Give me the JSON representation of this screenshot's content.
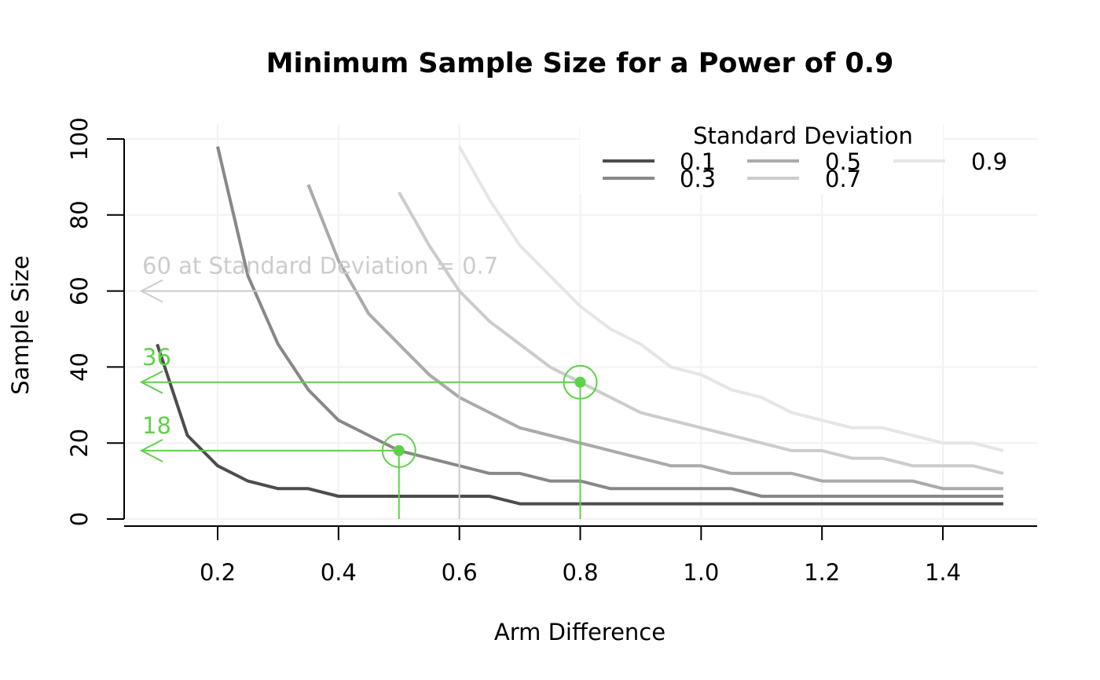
{
  "chart_data": {
    "type": "line",
    "title": "Minimum Sample Size for a Power of 0.9",
    "xlabel": "Arm Difference",
    "ylabel": "Sample Size",
    "xlim": [
      0.05,
      1.55
    ],
    "ylim": [
      0,
      100
    ],
    "xticks": [
      "0.2",
      "0.4",
      "0.6",
      "0.8",
      "1.0",
      "1.2",
      "1.4"
    ],
    "yticks": [
      "0",
      "20",
      "40",
      "60",
      "80",
      "100"
    ],
    "grid": true,
    "legend": {
      "title": "Standard Deviation",
      "placement": "top-right",
      "entries": [
        "0.1",
        "0.3",
        "0.5",
        "0.7",
        "0.9"
      ]
    },
    "series": [
      {
        "name": "0.1",
        "color": "#4d4d4d",
        "x": [
          0.1,
          0.15,
          0.2,
          0.25,
          0.3,
          0.35,
          0.4,
          0.45,
          0.5,
          0.55,
          0.6,
          0.65,
          0.7,
          0.75,
          0.8,
          0.85,
          0.9,
          0.95,
          1.0,
          1.05,
          1.1,
          1.15,
          1.2,
          1.25,
          1.3,
          1.35,
          1.4,
          1.45,
          1.5
        ],
        "y": [
          46,
          22,
          14,
          10,
          8,
          8,
          6,
          6,
          6,
          6,
          6,
          6,
          4,
          4,
          4,
          4,
          4,
          4,
          4,
          4,
          4,
          4,
          4,
          4,
          4,
          4,
          4,
          4,
          4
        ]
      },
      {
        "name": "0.3",
        "color": "#888888",
        "x": [
          0.2,
          0.25,
          0.3,
          0.35,
          0.4,
          0.45,
          0.5,
          0.55,
          0.6,
          0.65,
          0.7,
          0.75,
          0.8,
          0.85,
          0.9,
          0.95,
          1.0,
          1.05,
          1.1,
          1.15,
          1.2,
          1.25,
          1.3,
          1.35,
          1.4,
          1.45,
          1.5
        ],
        "y": [
          98,
          64,
          46,
          34,
          26,
          22,
          18,
          16,
          14,
          12,
          12,
          10,
          10,
          8,
          8,
          8,
          8,
          8,
          6,
          6,
          6,
          6,
          6,
          6,
          6,
          6,
          6
        ]
      },
      {
        "name": "0.5",
        "color": "#aaaaaa",
        "x": [
          0.35,
          0.4,
          0.45,
          0.5,
          0.55,
          0.6,
          0.65,
          0.7,
          0.75,
          0.8,
          0.85,
          0.9,
          0.95,
          1.0,
          1.05,
          1.1,
          1.15,
          1.2,
          1.25,
          1.3,
          1.35,
          1.4,
          1.45,
          1.5
        ],
        "y": [
          88,
          68,
          54,
          46,
          38,
          32,
          28,
          24,
          22,
          20,
          18,
          16,
          14,
          14,
          12,
          12,
          12,
          10,
          10,
          10,
          10,
          8,
          8,
          8
        ]
      },
      {
        "name": "0.7",
        "color": "#cccccc",
        "x": [
          0.5,
          0.55,
          0.6,
          0.65,
          0.7,
          0.75,
          0.8,
          0.85,
          0.9,
          0.95,
          1.0,
          1.05,
          1.1,
          1.15,
          1.2,
          1.25,
          1.3,
          1.35,
          1.4,
          1.45,
          1.5
        ],
        "y": [
          86,
          72,
          60,
          52,
          46,
          40,
          36,
          32,
          28,
          26,
          24,
          22,
          20,
          18,
          18,
          16,
          16,
          14,
          14,
          14,
          12
        ]
      },
      {
        "name": "0.9",
        "color": "#e6e6e6",
        "x": [
          0.6,
          0.65,
          0.7,
          0.75,
          0.8,
          0.85,
          0.9,
          0.95,
          1.0,
          1.05,
          1.1,
          1.15,
          1.2,
          1.25,
          1.3,
          1.35,
          1.4,
          1.45,
          1.5
        ],
        "y": [
          98,
          84,
          72,
          64,
          56,
          50,
          46,
          40,
          38,
          34,
          32,
          28,
          26,
          24,
          24,
          22,
          20,
          20,
          18
        ]
      }
    ],
    "annotations": [
      {
        "label": "60 at Standard Deviation = 0.7",
        "x": 0.6,
        "y": 60,
        "color": "#cccccc",
        "marker": false
      },
      {
        "label": "36",
        "x": 0.8,
        "y": 36,
        "color": "#5ed14a",
        "marker": true
      },
      {
        "label": "18",
        "x": 0.5,
        "y": 18,
        "color": "#5ed14a",
        "marker": true
      }
    ]
  }
}
